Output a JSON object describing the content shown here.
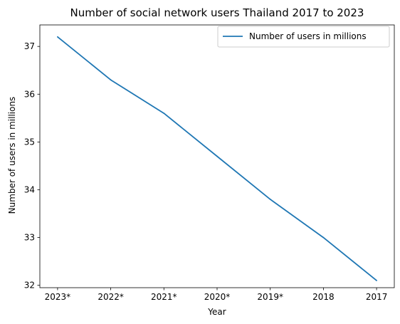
{
  "chart_data": {
    "type": "line",
    "title": "Number of social network users Thailand 2017 to 2023",
    "xlabel": "Year",
    "ylabel": "Number of users in millions",
    "categories": [
      "2023*",
      "2022*",
      "2021*",
      "2020*",
      "2019*",
      "2018",
      "2017"
    ],
    "series": [
      {
        "name": "Number of users in millions",
        "color": "#1f77b4",
        "values": [
          37.2,
          36.3,
          35.6,
          34.7,
          33.8,
          33.0,
          32.1
        ]
      }
    ],
    "yticks": [
      "32",
      "33",
      "34",
      "35",
      "36",
      "37"
    ],
    "ylim": [
      31.95,
      37.45
    ],
    "grid": false,
    "legend_position": "top-right"
  }
}
